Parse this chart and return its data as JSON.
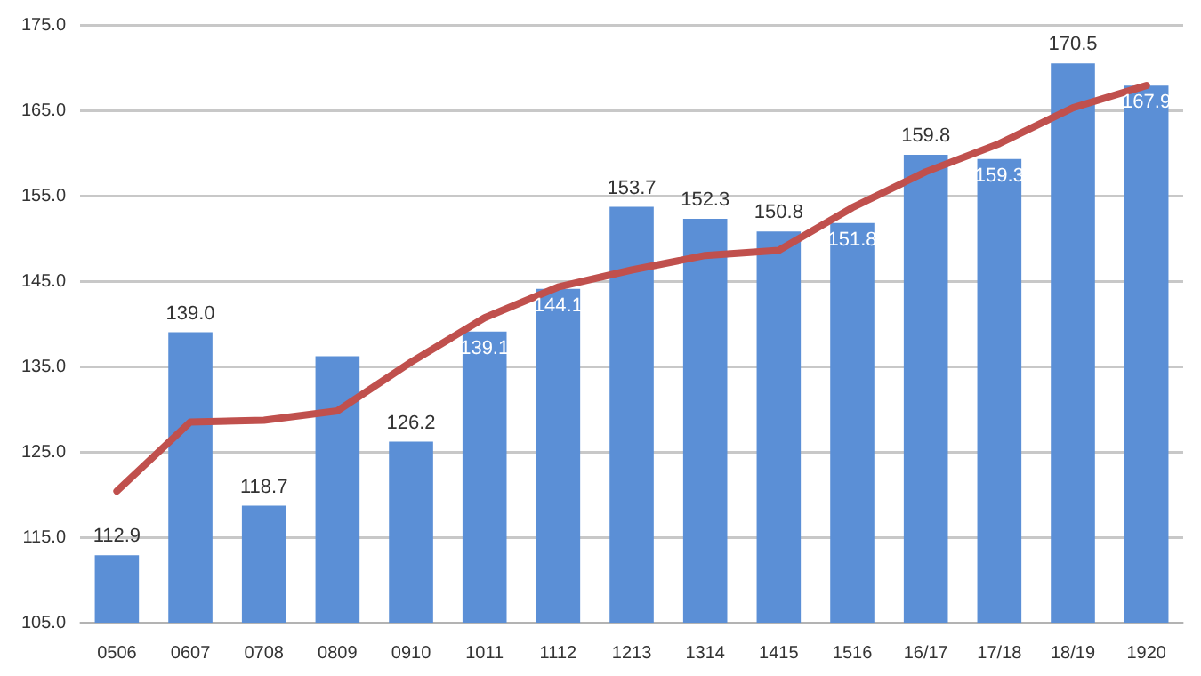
{
  "chart_data": {
    "type": "bar",
    "categories": [
      "0506",
      "0607",
      "0708",
      "0809",
      "0910",
      "1011",
      "1112",
      "1213",
      "1314",
      "1415",
      "1516",
      "16/17",
      "17/18",
      "18/19",
      "1920"
    ],
    "series": [
      {
        "color": "#5b8fd6",
        "values": [
          112.9,
          139.0,
          118.7,
          136.2,
          126.2,
          139.1,
          144.1,
          153.7,
          152.3,
          150.8,
          151.8,
          159.8,
          159.3,
          170.5,
          167.9
        ],
        "value_labels": [
          "112.9",
          "139.0",
          "118.7",
          null,
          "126.2",
          "139.1",
          "144.1",
          "153.7",
          "152.3",
          "150.8",
          "151.8",
          "159.8",
          "159.3",
          "170.5",
          "167.9"
        ]
      },
      {
        "type": "line",
        "color": "#c0504d",
        "values": [
          120.4,
          128.5,
          128.7,
          129.8,
          135.5,
          140.7,
          144.3,
          146.3,
          148.0,
          148.6,
          153.6,
          157.8,
          161.1,
          165.3,
          167.9
        ]
      }
    ],
    "ylim": [
      105,
      175
    ],
    "yticks": [
      {
        "value": 105,
        "label": "105.0"
      },
      {
        "value": 115,
        "label": "115.0"
      },
      {
        "value": 125,
        "label": "125.0"
      },
      {
        "value": 135,
        "label": "135.0"
      },
      {
        "value": 145,
        "label": "145.0"
      },
      {
        "value": 155,
        "label": "155.0"
      },
      {
        "value": 165,
        "label": "165.0"
      },
      {
        "value": 175,
        "label": "175.0"
      }
    ],
    "grid": "y",
    "legend": false,
    "marker": "none",
    "line_style": "solid"
  }
}
